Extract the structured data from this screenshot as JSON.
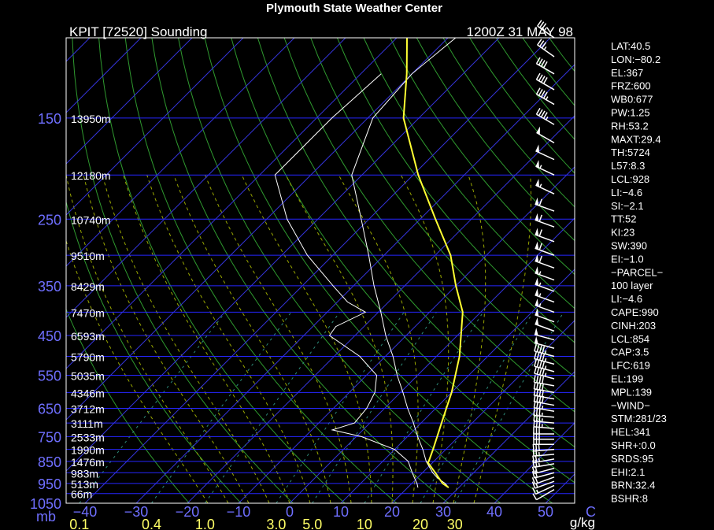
{
  "title": "Plymouth State Weather Center",
  "subtitle_left": "KPIT [72520] Sounding",
  "subtitle_right": "1200Z 31 MAY 98",
  "chart_data": {
    "type": "skew-t log-p",
    "pressure_levels": [
      150,
      250,
      350,
      450,
      550,
      650,
      750,
      850,
      950,
      1050
    ],
    "pressure_axis_unit": "mb",
    "temperature_ticks": [
      -40,
      -30,
      -20,
      -10,
      0,
      10,
      20,
      30,
      40,
      50
    ],
    "temperature_unit": "C",
    "mixing_ratio_ticks": [
      "0.1",
      "0.4",
      "1.0",
      "3.0",
      "5.0",
      "10",
      "20",
      "30"
    ],
    "mixing_ratio_unit": "g/kg",
    "height_labels": [
      {
        "p": 150,
        "label": "13950m"
      },
      {
        "p": 200,
        "label": "12180m"
      },
      {
        "p": 250,
        "label": "10740m"
      },
      {
        "p": 300,
        "label": "9510m"
      },
      {
        "p": 350,
        "label": "8429m"
      },
      {
        "p": 400,
        "label": "7470m"
      },
      {
        "p": 450,
        "label": "6593m"
      },
      {
        "p": 500,
        "label": "5790m"
      },
      {
        "p": 550,
        "label": "5035m"
      },
      {
        "p": 600,
        "label": "4346m"
      },
      {
        "p": 650,
        "label": "3712m"
      },
      {
        "p": 700,
        "label": "3111m"
      },
      {
        "p": 750,
        "label": "2533m"
      },
      {
        "p": 800,
        "label": "1990m"
      },
      {
        "p": 850,
        "label": "1476m"
      },
      {
        "p": 900,
        "label": "983m"
      },
      {
        "p": 950,
        "label": "513m"
      },
      {
        "p": 1000,
        "label": "66m"
      }
    ],
    "temperature_profile": [
      [
        970,
        28
      ],
      [
        950,
        26.5
      ],
      [
        925,
        24
      ],
      [
        900,
        22
      ],
      [
        850,
        18.5
      ],
      [
        800,
        15.5
      ],
      [
        750,
        12
      ],
      [
        700,
        8.5
      ],
      [
        650,
        4.5
      ],
      [
        600,
        0.5
      ],
      [
        550,
        -4
      ],
      [
        500,
        -8.5
      ],
      [
        450,
        -14
      ],
      [
        400,
        -19.5
      ],
      [
        350,
        -26
      ],
      [
        300,
        -33
      ],
      [
        250,
        -41.5
      ],
      [
        200,
        -52
      ],
      [
        150,
        -59
      ],
      [
        120,
        -60
      ],
      [
        100,
        -58.5
      ]
    ],
    "dewpoint_profile": [
      [
        970,
        22
      ],
      [
        950,
        21
      ],
      [
        925,
        19.5
      ],
      [
        900,
        18
      ],
      [
        850,
        15
      ],
      [
        800,
        10
      ],
      [
        750,
        1
      ],
      [
        725,
        -6
      ],
      [
        700,
        -3
      ],
      [
        650,
        -3.5
      ],
      [
        600,
        -5
      ],
      [
        550,
        -8
      ],
      [
        500,
        -15
      ],
      [
        450,
        -25
      ],
      [
        430,
        -25.5
      ],
      [
        400,
        -22.5
      ],
      [
        380,
        -28
      ],
      [
        350,
        -34
      ],
      [
        300,
        -45
      ],
      [
        250,
        -56
      ],
      [
        200,
        -67
      ],
      [
        170,
        -67
      ],
      [
        150,
        -67
      ],
      [
        120,
        -66
      ]
    ],
    "parcel_profile": [
      [
        970,
        28
      ],
      [
        950,
        26
      ],
      [
        900,
        22.5
      ],
      [
        854,
        19
      ],
      [
        850,
        19
      ],
      [
        800,
        17.5
      ],
      [
        700,
        14
      ],
      [
        600,
        10
      ],
      [
        500,
        4.5
      ],
      [
        400,
        -3.5
      ],
      [
        350,
        -10
      ],
      [
        300,
        -17
      ],
      [
        250,
        -27
      ],
      [
        200,
        -39
      ],
      [
        150,
        -53
      ],
      [
        120,
        -61
      ],
      [
        100,
        -68
      ]
    ],
    "wind_barbs": [
      {
        "p": 980,
        "dir": 240,
        "spd": 10
      },
      {
        "p": 960,
        "dir": 245,
        "spd": 15
      },
      {
        "p": 940,
        "dir": 250,
        "spd": 15
      },
      {
        "p": 920,
        "dir": 250,
        "spd": 20
      },
      {
        "p": 900,
        "dir": 255,
        "spd": 20
      },
      {
        "p": 880,
        "dir": 255,
        "spd": 20
      },
      {
        "p": 860,
        "dir": 260,
        "spd": 25
      },
      {
        "p": 840,
        "dir": 260,
        "spd": 25
      },
      {
        "p": 820,
        "dir": 265,
        "spd": 25
      },
      {
        "p": 800,
        "dir": 265,
        "spd": 30
      },
      {
        "p": 780,
        "dir": 270,
        "spd": 30
      },
      {
        "p": 760,
        "dir": 270,
        "spd": 30
      },
      {
        "p": 740,
        "dir": 270,
        "spd": 30
      },
      {
        "p": 720,
        "dir": 275,
        "spd": 35
      },
      {
        "p": 700,
        "dir": 275,
        "spd": 35
      },
      {
        "p": 680,
        "dir": 275,
        "spd": 35
      },
      {
        "p": 660,
        "dir": 280,
        "spd": 35
      },
      {
        "p": 640,
        "dir": 280,
        "spd": 40
      },
      {
        "p": 620,
        "dir": 280,
        "spd": 40
      },
      {
        "p": 600,
        "dir": 280,
        "spd": 40
      },
      {
        "p": 580,
        "dir": 280,
        "spd": 40
      },
      {
        "p": 560,
        "dir": 285,
        "spd": 45
      },
      {
        "p": 540,
        "dir": 285,
        "spd": 45
      },
      {
        "p": 520,
        "dir": 285,
        "spd": 45
      },
      {
        "p": 500,
        "dir": 285,
        "spd": 45
      },
      {
        "p": 480,
        "dir": 285,
        "spd": 50
      },
      {
        "p": 460,
        "dir": 285,
        "spd": 50
      },
      {
        "p": 440,
        "dir": 290,
        "spd": 50
      },
      {
        "p": 420,
        "dir": 290,
        "spd": 50
      },
      {
        "p": 400,
        "dir": 290,
        "spd": 55
      },
      {
        "p": 380,
        "dir": 290,
        "spd": 55
      },
      {
        "p": 360,
        "dir": 290,
        "spd": 55
      },
      {
        "p": 340,
        "dir": 290,
        "spd": 55
      },
      {
        "p": 320,
        "dir": 290,
        "spd": 60
      },
      {
        "p": 300,
        "dir": 290,
        "spd": 60
      },
      {
        "p": 280,
        "dir": 290,
        "spd": 60
      },
      {
        "p": 260,
        "dir": 290,
        "spd": 60
      },
      {
        "p": 240,
        "dir": 290,
        "spd": 60
      },
      {
        "p": 220,
        "dir": 295,
        "spd": 55
      },
      {
        "p": 200,
        "dir": 295,
        "spd": 55
      },
      {
        "p": 185,
        "dir": 295,
        "spd": 50
      },
      {
        "p": 170,
        "dir": 300,
        "spd": 50
      },
      {
        "p": 155,
        "dir": 300,
        "spd": 45
      },
      {
        "p": 140,
        "dir": 300,
        "spd": 45
      },
      {
        "p": 130,
        "dir": 300,
        "spd": 40
      },
      {
        "p": 120,
        "dir": 300,
        "spd": 40
      },
      {
        "p": 110,
        "dir": 305,
        "spd": 35
      },
      {
        "p": 100,
        "dir": 305,
        "spd": 35
      }
    ],
    "legend": "none"
  },
  "stats": [
    "LAT:40.5",
    "LON:−80.2",
    "EL:367",
    "FRZ:600",
    "WB0:677",
    "PW:1.25",
    "RH:53.2",
    "MAXT:29.4",
    "TH:5724",
    "L57:8.3",
    "LCL:928",
    "LI:−4.6",
    "SI:−2.1",
    "TT:52",
    "KI:23",
    "SW:390",
    "EI:−1.0",
    "−PARCEL−",
    "100 layer",
    "LI:−4.6",
    "CAPE:990",
    "CINH:203",
    "LCL:854",
    "CAP:3.5",
    "LFC:619",
    "EL:199",
    "MPL:139",
    "−WIND−",
    "STM:281/23",
    "HEL:341",
    "SHR+:0.0",
    "SRDS:95",
    "EHI:2.1",
    "BRN:32.4",
    "BSHR:8"
  ],
  "colors": {
    "isobar": "#2626ff",
    "isotherm": "#3434d8",
    "dry_adiabat": "#2f9a2f",
    "moist_adiabat": "#9aa800",
    "mixing_ratio": "#2e8b7a",
    "temperature": "#ffffff",
    "dewpoint": "#ffffff",
    "parcel": "#ffff33",
    "barb": "#ffffff",
    "axis_label_blue": "#6f6fff",
    "axis_label_yellow": "#ffff66"
  }
}
